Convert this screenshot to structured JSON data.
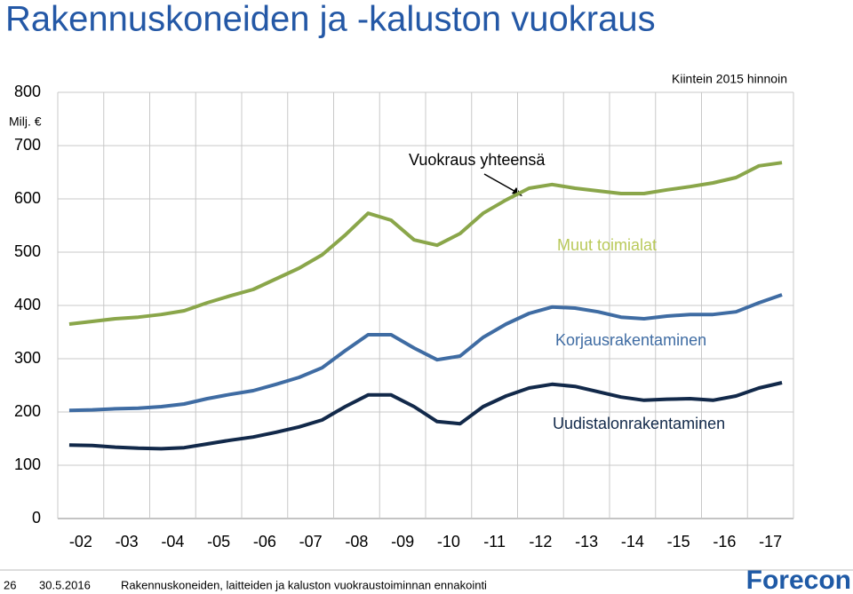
{
  "chart_data": {
    "type": "line",
    "title": "Rakennuskoneiden ja -kaluston vuokraus",
    "y_unit": "Milj. €",
    "subtitle": "Kiintein 2015 hinnoin",
    "annotations": [
      "Vuokraus yhteensä",
      "Muut toimialat",
      "Korjausrakentaminen",
      "Uudistalonrakentaminen"
    ],
    "x": [
      2002.25,
      2002.75,
      2003.25,
      2003.75,
      2004.25,
      2004.75,
      2005.25,
      2005.75,
      2006.25,
      2006.75,
      2007.25,
      2007.75,
      2008.25,
      2008.75,
      2009.25,
      2009.75,
      2010.25,
      2010.75,
      2011.25,
      2011.75,
      2012.25,
      2012.75,
      2013.25,
      2013.75,
      2014.25,
      2014.75,
      2015.25,
      2015.75,
      2016.25,
      2016.75,
      2017.25,
      2017.75
    ],
    "series": [
      {
        "color": "#8aa64a",
        "values": [
          365,
          370,
          375,
          378,
          383,
          390,
          405,
          418,
          430,
          450,
          470,
          495,
          532,
          573,
          560,
          523,
          513,
          535,
          573,
          598,
          620,
          627,
          620,
          615,
          610,
          610,
          617,
          623,
          630,
          640,
          662,
          668
        ]
      },
      {
        "color": "#3f6ca3",
        "values": [
          203,
          204,
          206,
          207,
          210,
          215,
          225,
          233,
          240,
          252,
          265,
          283,
          315,
          345,
          345,
          320,
          298,
          305,
          340,
          365,
          385,
          397,
          395,
          388,
          378,
          375,
          380,
          383,
          383,
          388,
          405,
          420
        ]
      },
      {
        "color": "#12294a",
        "values": [
          138,
          137,
          134,
          132,
          131,
          133,
          140,
          147,
          153,
          162,
          172,
          185,
          210,
          232,
          232,
          210,
          182,
          178,
          210,
          230,
          245,
          252,
          248,
          238,
          228,
          222,
          224,
          225,
          222,
          230,
          245,
          255
        ]
      }
    ],
    "xlim": [
      2002,
      2018
    ],
    "xticks": [
      {
        "value": 2002.5,
        "label": "-02"
      },
      {
        "value": 2003.5,
        "label": "-03"
      },
      {
        "value": 2004.5,
        "label": "-04"
      },
      {
        "value": 2005.5,
        "label": "-05"
      },
      {
        "value": 2006.5,
        "label": "-06"
      },
      {
        "value": 2007.5,
        "label": "-07"
      },
      {
        "value": 2008.5,
        "label": "-08"
      },
      {
        "value": 2009.5,
        "label": "-09"
      },
      {
        "value": 2010.5,
        "label": "-10"
      },
      {
        "value": 2011.5,
        "label": "-11"
      },
      {
        "value": 2012.5,
        "label": "-12"
      },
      {
        "value": 2013.5,
        "label": "-13"
      },
      {
        "value": 2014.5,
        "label": "-14"
      },
      {
        "value": 2015.5,
        "label": "-15"
      },
      {
        "value": 2016.5,
        "label": "-16"
      },
      {
        "value": 2017.5,
        "label": "-17"
      }
    ],
    "xgrid": [
      2002,
      2003,
      2004,
      2005,
      2006,
      2007,
      2008,
      2009,
      2010,
      2011,
      2012,
      2013,
      2014,
      2015,
      2016,
      2017,
      2018
    ],
    "ylim": [
      0,
      800
    ],
    "yticks": [
      0,
      100,
      200,
      300,
      400,
      500,
      600,
      700,
      800
    ],
    "grid": true
  },
  "footer": {
    "page": "26",
    "date": "30.5.2016",
    "text": "Rakennuskoneiden, laitteiden ja kaluston vuokraustoiminnan ennakointi",
    "logo": "Forecon"
  }
}
